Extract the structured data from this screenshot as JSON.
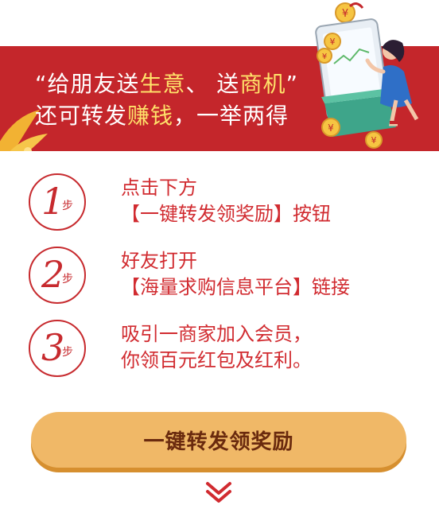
{
  "banner": {
    "line1_prefix": "“给朋友送",
    "line1_hl1": "生意",
    "line1_mid": "、 送",
    "line1_hl2": "商机",
    "line1_suffix": "”",
    "line2_prefix": "还可转发",
    "line2_hl": "赚钱",
    "line2_suffix": "，一举两得"
  },
  "steps": [
    {
      "num": "1",
      "unit": "步",
      "line1": "点击下方",
      "line2": "【一键转发领奖励】按钮"
    },
    {
      "num": "2",
      "unit": "步",
      "line1": "好友打开",
      "line2": "【海量求购信息平台】链接"
    },
    {
      "num": "3",
      "unit": "步",
      "line1": "吸引一商家加入会员，",
      "line2": "你领百元红包及红利。"
    }
  ],
  "cta": {
    "label": "一键转发领奖励"
  },
  "icons": {
    "scroll": "double-chevron-down-icon",
    "coin": "yen-coin-icon"
  },
  "colors": {
    "banner": "#c4262b",
    "accent": "#d12b30",
    "cta": "#f0b867",
    "highlight": "#ffe26a"
  }
}
